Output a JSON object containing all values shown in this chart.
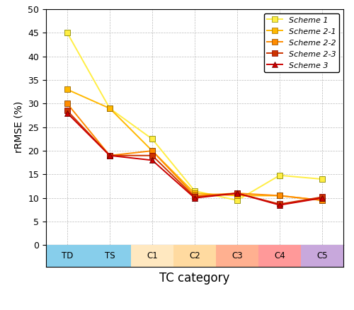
{
  "categories": [
    "TD",
    "TS",
    "C1",
    "C2",
    "C3",
    "C4",
    "C5"
  ],
  "scheme1": [
    45.0,
    29.0,
    22.5,
    11.5,
    9.5,
    14.8,
    14.0
  ],
  "scheme2_1": [
    33.0,
    29.0,
    20.0,
    11.0,
    10.5,
    10.5,
    9.5
  ],
  "scheme2_2": [
    30.0,
    19.0,
    20.0,
    10.5,
    11.0,
    10.5,
    9.5
  ],
  "scheme2_3": [
    28.5,
    19.0,
    19.0,
    10.2,
    11.0,
    8.7,
    10.2
  ],
  "scheme3": [
    28.0,
    19.0,
    18.0,
    10.0,
    11.0,
    8.5,
    10.0
  ],
  "color_scheme1": "#FFEE44",
  "color_scheme2_1": "#FFB800",
  "color_scheme2_2": "#FF8C00",
  "color_scheme2_3": "#CC3300",
  "color_scheme3": "#CC0000",
  "cat_colors": [
    "#87CEEB",
    "#87CEEB",
    "#FFE8C0",
    "#FFDAA0",
    "#FFB090",
    "#FF9999",
    "#C8A8DC"
  ],
  "ylabel": "rRMSE (%)",
  "xlabel": "TC category",
  "ylim": [
    0,
    50
  ],
  "yticks": [
    0,
    5,
    10,
    15,
    20,
    25,
    30,
    35,
    40,
    45,
    50
  ],
  "legend_labels": [
    "Scheme 1",
    "Scheme 2-1",
    "Scheme 2-2",
    "Scheme 2-3",
    "Scheme 3"
  ],
  "fig_bg": "#FFFFFF"
}
